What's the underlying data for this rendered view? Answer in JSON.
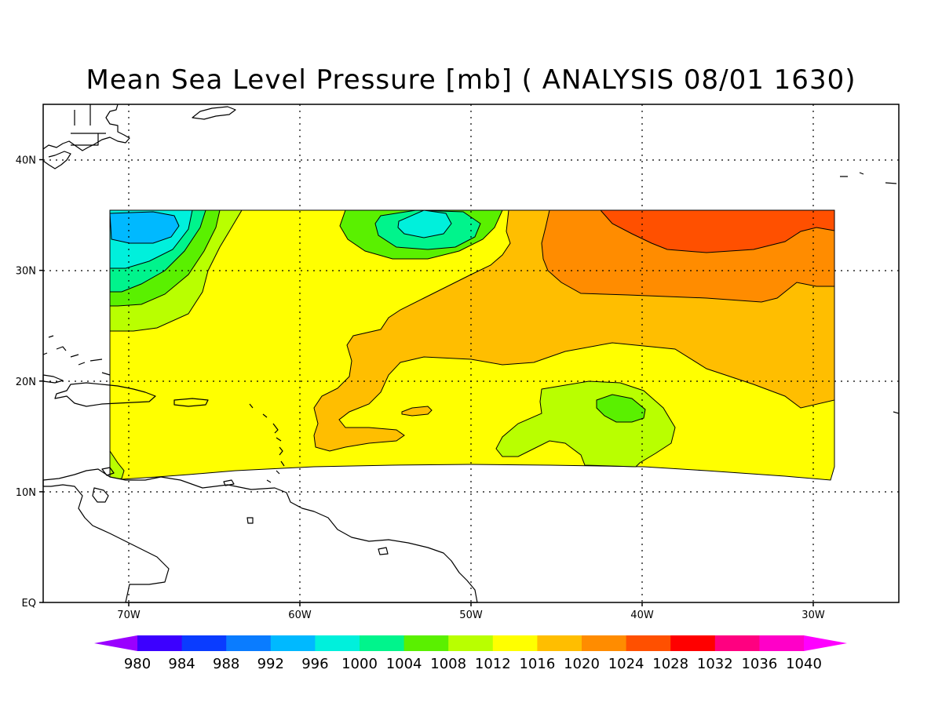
{
  "title": "Mean Sea Level Pressure [mb] ( ANALYSIS 08/01 1630)",
  "map": {
    "lon_range": [
      -75,
      -25
    ],
    "lat_range": [
      0,
      45
    ],
    "lon_ticks": [
      {
        "value": -70,
        "label": "70W"
      },
      {
        "value": -60,
        "label": "60W"
      },
      {
        "value": -50,
        "label": "50W"
      },
      {
        "value": -40,
        "label": "40W"
      },
      {
        "value": -30,
        "label": "30W"
      }
    ],
    "lat_ticks": [
      {
        "value": 0,
        "label": "EQ"
      },
      {
        "value": 10,
        "label": "10N"
      },
      {
        "value": 20,
        "label": "20N"
      },
      {
        "value": 30,
        "label": "30N"
      },
      {
        "value": 40,
        "label": "40N"
      }
    ],
    "grid": true,
    "features": [
      {
        "name": "Low 996-1000 mb near 34N 68W",
        "level": 996
      },
      {
        "name": "Low 1000 mb near 34N 53W",
        "level": 1000
      },
      {
        "name": "Weak low 1004 mb near 18N 41W",
        "level": 1004
      },
      {
        "name": "High 1024-1028 mb north-east, 33-35N 30-42W",
        "level": 1024
      }
    ]
  },
  "colorbar": {
    "labels": [
      "980",
      "984",
      "988",
      "992",
      "996",
      "1000",
      "1004",
      "1008",
      "1012",
      "1016",
      "1020",
      "1024",
      "1028",
      "1032",
      "1036",
      "1040"
    ],
    "colors": [
      "#9a00ff",
      "#3c00ff",
      "#0a3cff",
      "#0a7cff",
      "#00b9ff",
      "#00f0dc",
      "#00f48c",
      "#5af000",
      "#b9ff00",
      "#ffff00",
      "#ffbe00",
      "#ff8c00",
      "#ff5000",
      "#ff0000",
      "#ff0080",
      "#ff00c8",
      "#ff00ff"
    ]
  }
}
